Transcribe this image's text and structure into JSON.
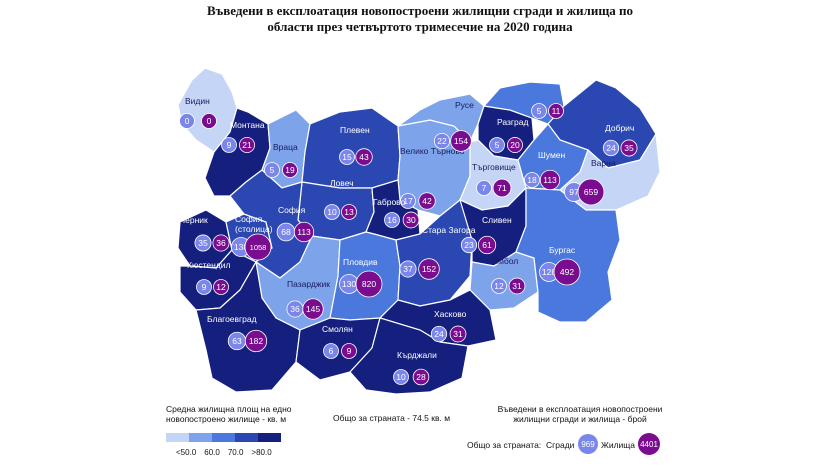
{
  "title_line1": "Въведени в експлоатация новопостроени жилищни сгради и жилища по",
  "title_line2": "области през четвъртото тримесечие на 2020 година",
  "colors": {
    "lt50": "#c5d5f6",
    "50to60": "#7da3ea",
    "60to70": "#4a78dc",
    "70to80": "#2b48b2",
    "gt80": "#151f7e",
    "buildings_bubble": "#7a86ea",
    "dwellings_bubble": "#7a0c8f",
    "borders": "#ffffff"
  },
  "regions": [
    {
      "name": "Видин",
      "buildings": "0",
      "dwellings": "0",
      "class": "lt50"
    },
    {
      "name": "Монтана",
      "buildings": "9",
      "dwellings": "21",
      "class": "gt80"
    },
    {
      "name": "Враца",
      "buildings": "5",
      "dwellings": "19",
      "class": "50to60"
    },
    {
      "name": "Плевен",
      "buildings": "15",
      "dwellings": "43",
      "class": "70to80"
    },
    {
      "name": "Ловеч",
      "buildings": "10",
      "dwellings": "13",
      "class": "70to80"
    },
    {
      "name": "Велико Търново",
      "buildings": "17",
      "dwellings": "42",
      "class": "50to60"
    },
    {
      "name": "Габрово",
      "buildings": "16",
      "dwellings": "30",
      "class": "gt80"
    },
    {
      "name": "Русе",
      "buildings": "22",
      "dwellings": "154",
      "class": "50to60"
    },
    {
      "name": "Разград",
      "buildings": "5",
      "dwellings": "20",
      "class": "gt80"
    },
    {
      "name": "Силистра",
      "buildings": "5",
      "dwellings": "11",
      "class": "60to70"
    },
    {
      "name": "Добрич",
      "buildings": "24",
      "dwellings": "35",
      "class": "70to80"
    },
    {
      "name": "Търговище",
      "buildings": "7",
      "dwellings": "71",
      "class": "lt50"
    },
    {
      "name": "Шумен",
      "buildings": "18",
      "dwellings": "113",
      "class": "60to70"
    },
    {
      "name": "Варна",
      "buildings": "97",
      "dwellings": "659",
      "class": "lt50"
    },
    {
      "name": "Перник",
      "buildings": "35",
      "dwellings": "36",
      "class": "gt80"
    },
    {
      "name": "София (столица)",
      "buildings": "138",
      "dwellings": "1058",
      "class": "70to80"
    },
    {
      "name": "София",
      "buildings": "68",
      "dwellings": "113",
      "class": "70to80"
    },
    {
      "name": "Кюстендил",
      "buildings": "9",
      "dwellings": "12",
      "class": "gt80"
    },
    {
      "name": "Пазарджик",
      "buildings": "36",
      "dwellings": "145",
      "class": "50to60"
    },
    {
      "name": "Пловдив",
      "buildings": "130",
      "dwellings": "820",
      "class": "60to70"
    },
    {
      "name": "Стара Загора",
      "buildings": "37",
      "dwellings": "152",
      "class": "70to80"
    },
    {
      "name": "Сливен",
      "buildings": "23",
      "dwellings": "61",
      "class": "gt80"
    },
    {
      "name": "Ямбол",
      "buildings": "12",
      "dwellings": "31",
      "class": "50to60"
    },
    {
      "name": "Бургас",
      "buildings": "128",
      "dwellings": "492",
      "class": "60to70"
    },
    {
      "name": "Благоевград",
      "buildings": "63",
      "dwellings": "182",
      "class": "gt80"
    },
    {
      "name": "Смолян",
      "buildings": "6",
      "dwellings": "9",
      "class": "gt80"
    },
    {
      "name": "Хасково",
      "buildings": "24",
      "dwellings": "31",
      "class": "gt80"
    },
    {
      "name": "Кърджали",
      "buildings": "10",
      "dwellings": "28",
      "class": "gt80"
    }
  ],
  "legend": {
    "area_title_line1": "Средна жилищна площ на едно",
    "area_title_line2": "новопостроено жилище - кв. м",
    "ticks": [
      "<50.0",
      "60.0",
      "70.0",
      ">80.0"
    ],
    "country_average": "Общо за страната - 74.5 кв. м",
    "count_title_line1": "Въведени в експлоатация новопостроени",
    "count_title_line2": "жилищни сгради и жилища - брой",
    "country_total_label": "Общо за страната:",
    "buildings_label": "Сгради",
    "buildings_total": "969",
    "dwellings_label": "Жилища",
    "dwellings_total": "4401"
  }
}
